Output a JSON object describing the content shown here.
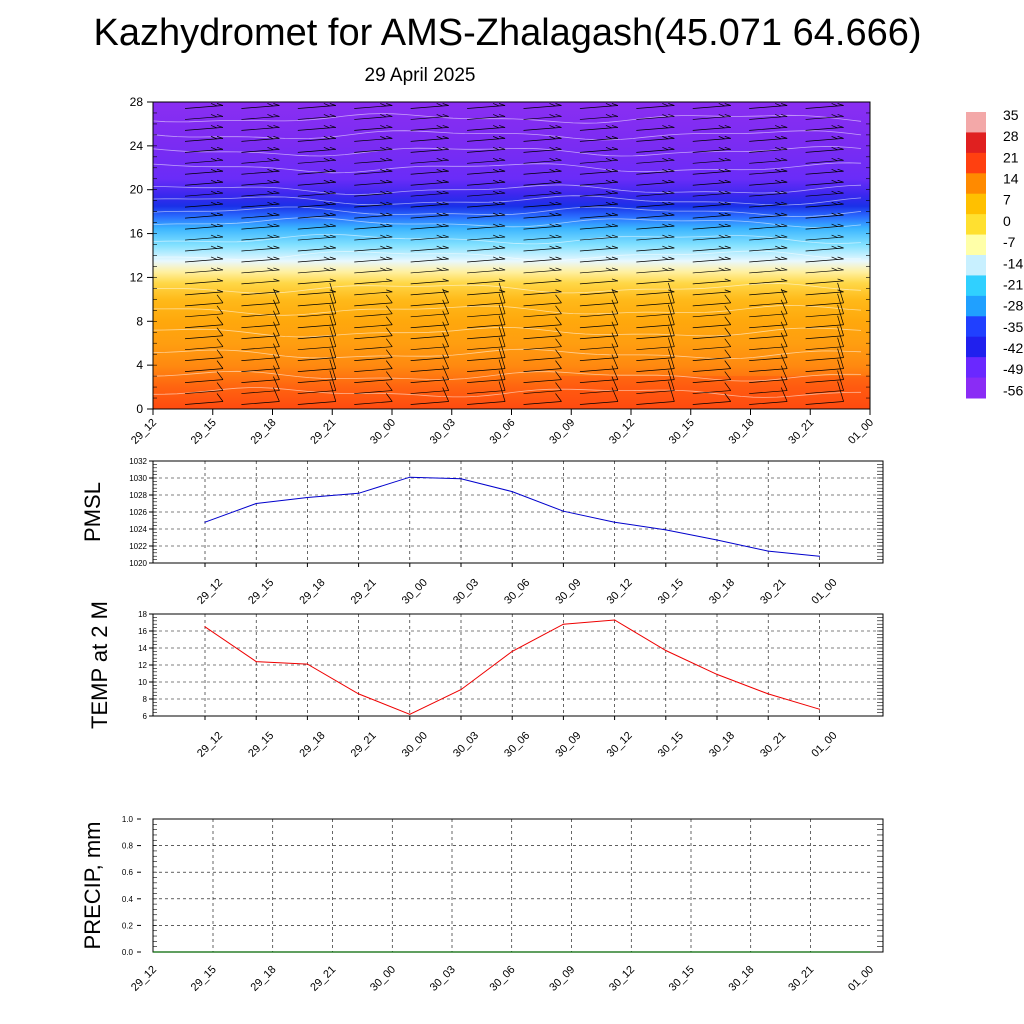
{
  "title": "Kazhydromet for AMS-Zhalagash(45.071 64.666)",
  "subtitle": "29 April 2025",
  "chart_data": [
    {
      "id": "cross-section",
      "type": "heatmap",
      "title": "",
      "xlabel": "",
      "ylabel": "",
      "x_ticks": [
        "29_12",
        "29_15",
        "29_18",
        "29_21",
        "30_00",
        "30_03",
        "30_06",
        "30_09",
        "30_12",
        "30_15",
        "30_18",
        "30_21",
        "01_00"
      ],
      "y_ticks": [
        0,
        4,
        8,
        12,
        16,
        20,
        24,
        28
      ],
      "ylim": [
        0,
        28
      ],
      "colorbar": {
        "labels": [
          "35",
          "28",
          "21",
          "14",
          "7",
          "0",
          "-7",
          "-14",
          "-21",
          "-28",
          "-35",
          "-42",
          "-49",
          "-56"
        ],
        "colors": [
          "#f3a8a8",
          "#e02020",
          "#ff4010",
          "#ff8a00",
          "#ffc000",
          "#ffe030",
          "#ffffa8",
          "#c8f0ff",
          "#30d0ff",
          "#20a0ff",
          "#2040ff",
          "#2020ee",
          "#6a28ff",
          "#8a2cf5"
        ]
      },
      "profile": {
        "levels": [
          0,
          2,
          4,
          6,
          8,
          10,
          11.5,
          12.5,
          13.5,
          15,
          16.5,
          17.5,
          18.5,
          19.5,
          21,
          24,
          28
        ],
        "colors": [
          "#ff4a10",
          "#ff6410",
          "#ff8a10",
          "#ff9e10",
          "#ffa80c",
          "#ffba1a",
          "#ffd848",
          "#fff0a0",
          "#e8f8ff",
          "#80e0ff",
          "#3ab4ff",
          "#2a70ff",
          "#1a30e8",
          "#3a28ee",
          "#6a2cf8",
          "#7a2cf2",
          "#8a2ef2"
        ]
      },
      "note_wind": "wind barbs drawn at every time step and level"
    },
    {
      "id": "pmsl",
      "type": "line",
      "ylabel": "PMSL",
      "x": [
        "29_12",
        "29_15",
        "29_18",
        "29_21",
        "30_00",
        "30_03",
        "30_06",
        "30_09",
        "30_12",
        "30_15",
        "30_18",
        "30_21",
        "01_00"
      ],
      "values": [
        1024.8,
        1027.0,
        1027.7,
        1028.2,
        1030.1,
        1029.9,
        1028.4,
        1026.1,
        1024.8,
        1023.9,
        1022.7,
        1021.4,
        1020.8
      ],
      "y_ticks": [
        1020,
        1022,
        1024,
        1026,
        1028,
        1030,
        1032
      ],
      "ylim": [
        1020,
        1032
      ],
      "color": "#0000cc",
      "grid": true
    },
    {
      "id": "temp2m",
      "type": "line",
      "ylabel": "TEMP at 2 M",
      "x": [
        "29_12",
        "29_15",
        "29_18",
        "29_21",
        "30_00",
        "30_03",
        "30_06",
        "30_09",
        "30_12",
        "30_15",
        "30_18",
        "30_21",
        "01_00"
      ],
      "values": [
        16.5,
        12.4,
        12.1,
        8.6,
        6.2,
        9.1,
        13.6,
        16.8,
        17.3,
        13.7,
        10.9,
        8.6,
        6.8
      ],
      "y_ticks": [
        6,
        8,
        10,
        12,
        14,
        16,
        18
      ],
      "ylim": [
        6,
        18
      ],
      "color": "#ee0000",
      "grid": true
    },
    {
      "id": "precip",
      "type": "line",
      "ylabel": "PRECIP, mm",
      "x": [
        "29_12",
        "29_15",
        "29_18",
        "29_21",
        "30_00",
        "30_03",
        "30_06",
        "30_09",
        "30_12",
        "30_15",
        "30_18",
        "30_21",
        "01_00"
      ],
      "values": [
        0,
        0,
        0,
        0,
        0,
        0,
        0,
        0,
        0,
        0,
        0,
        0,
        0
      ],
      "y_ticks": [
        "0.0",
        "0.2",
        "0.4",
        "0.6",
        "0.8",
        "1.0"
      ],
      "ylim": [
        0,
        1
      ],
      "color": "#006600",
      "grid": true
    }
  ]
}
